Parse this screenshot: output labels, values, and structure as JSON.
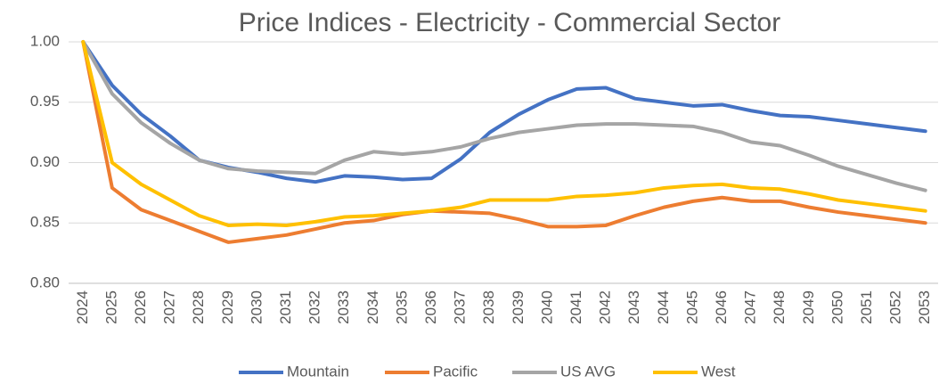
{
  "chart_data": {
    "type": "line",
    "title": "Price Indices - Electricity - Commercial Sector",
    "categories": [
      "2024",
      "2025",
      "2026",
      "2027",
      "2028",
      "2029",
      "2030",
      "2031",
      "2032",
      "2033",
      "2034",
      "2035",
      "2036",
      "2037",
      "2038",
      "2039",
      "2040",
      "2041",
      "2042",
      "2043",
      "2044",
      "2045",
      "2046",
      "2047",
      "2048",
      "2049",
      "2050",
      "2051",
      "2052",
      "2053"
    ],
    "series": [
      {
        "name": "Mountain",
        "color": "#4472c4",
        "values": [
          1.0,
          0.964,
          0.94,
          0.922,
          0.902,
          0.896,
          0.892,
          0.887,
          0.884,
          0.889,
          0.888,
          0.886,
          0.887,
          0.903,
          0.925,
          0.94,
          0.952,
          0.961,
          0.962,
          0.953,
          0.95,
          0.947,
          0.948,
          0.943,
          0.939,
          0.938,
          0.935,
          0.932,
          0.929,
          0.926
        ]
      },
      {
        "name": "Pacific",
        "color": "#ed7d31",
        "values": [
          1.0,
          0.879,
          0.861,
          0.852,
          0.843,
          0.834,
          0.837,
          0.84,
          0.845,
          0.85,
          0.852,
          0.857,
          0.86,
          0.859,
          0.858,
          0.853,
          0.847,
          0.847,
          0.848,
          0.856,
          0.863,
          0.868,
          0.871,
          0.868,
          0.868,
          0.863,
          0.859,
          0.856,
          0.853,
          0.85
        ]
      },
      {
        "name": "US AVG",
        "color": "#a5a5a5",
        "values": [
          1.0,
          0.957,
          0.933,
          0.916,
          0.902,
          0.895,
          0.893,
          0.892,
          0.891,
          0.902,
          0.909,
          0.907,
          0.909,
          0.913,
          0.92,
          0.925,
          0.928,
          0.931,
          0.932,
          0.932,
          0.931,
          0.93,
          0.925,
          0.917,
          0.914,
          0.906,
          0.897,
          0.89,
          0.883,
          0.877
        ]
      },
      {
        "name": "West",
        "color": "#ffc000",
        "values": [
          1.0,
          0.9,
          0.882,
          0.869,
          0.856,
          0.848,
          0.849,
          0.848,
          0.851,
          0.855,
          0.856,
          0.858,
          0.86,
          0.863,
          0.869,
          0.869,
          0.869,
          0.872,
          0.873,
          0.875,
          0.879,
          0.881,
          0.882,
          0.879,
          0.878,
          0.874,
          0.869,
          0.866,
          0.863,
          0.86
        ]
      }
    ],
    "ylim": [
      0.8,
      1.0
    ],
    "yticks": [
      {
        "value": 0.8,
        "label": "0.80"
      },
      0.85,
      {
        "value": 0.9,
        "label": "0.90"
      },
      0.95,
      {
        "value": 1.0,
        "label": "1.00"
      }
    ],
    "grid": true,
    "legend": "bottom"
  }
}
